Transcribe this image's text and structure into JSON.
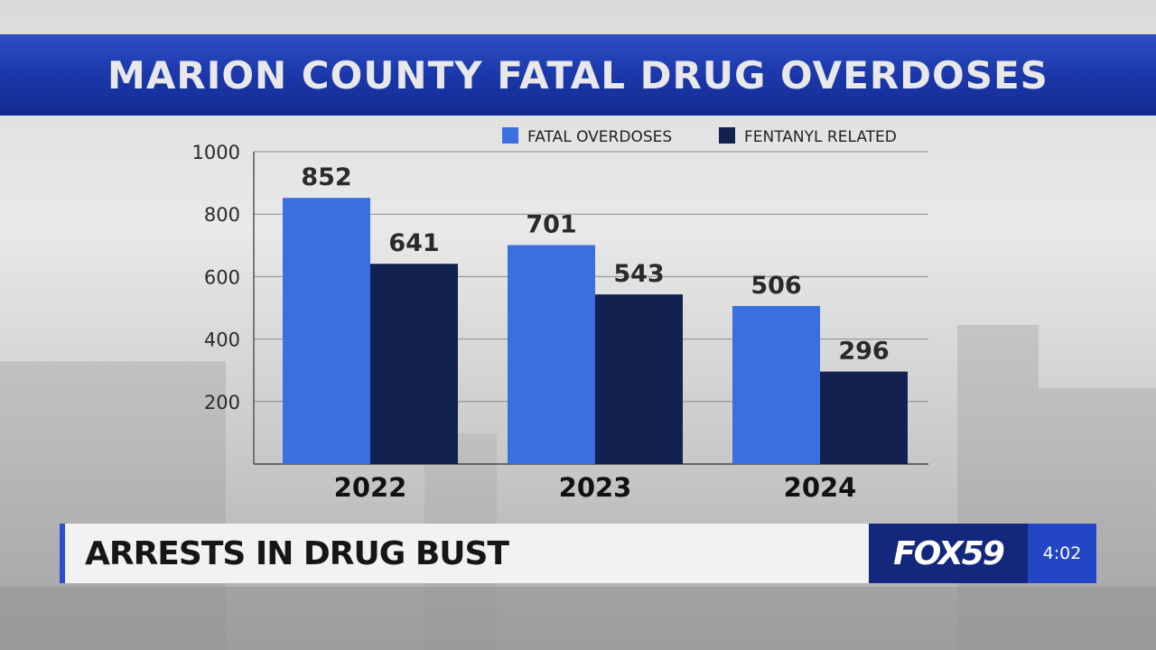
{
  "banner": {
    "title": "MARION COUNTY FATAL DRUG OVERDOSES"
  },
  "colors": {
    "fatal": "#3b6fe0",
    "fentanyl": "#12214f",
    "grid": "#8a8a8a",
    "text": "#2a2a2a"
  },
  "chart_data": {
    "type": "bar",
    "title": "MARION COUNTY FATAL DRUG OVERDOSES",
    "categories": [
      "2022",
      "2023",
      "2024"
    ],
    "series": [
      {
        "name": "FATAL OVERDOSES",
        "values": [
          852,
          701,
          506
        ]
      },
      {
        "name": "FENTANYL RELATED",
        "values": [
          641,
          543,
          296
        ]
      }
    ],
    "yticks": [
      200,
      400,
      600,
      800,
      1000
    ],
    "ylim": [
      0,
      1000
    ],
    "grid": true,
    "legend": "top-right",
    "xlabel": "",
    "ylabel": ""
  },
  "lower_third": {
    "headline": "ARRESTS IN DRUG BUST"
  },
  "logo": {
    "text": "FOX59"
  },
  "clock": {
    "time": "4:02"
  }
}
